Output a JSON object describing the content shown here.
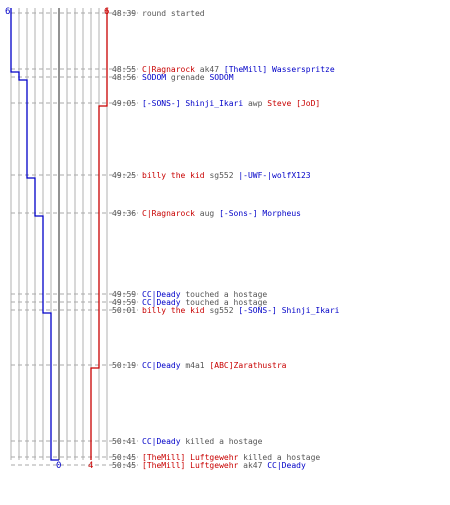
{
  "scores": {
    "blue_start": "6",
    "red_start": "6",
    "blue_end": "0",
    "red_end": "4"
  },
  "colors": {
    "blue": "#0000c8",
    "red": "#c80000",
    "neutral": "#555555",
    "grid": "#b0b0b0",
    "center": "#6e6e6e"
  },
  "events": [
    {
      "time": "48:39",
      "parts": [
        {
          "t": "round started",
          "c": "neutral"
        }
      ]
    },
    {
      "time": "48:55",
      "parts": [
        {
          "t": "C|Ragnarock",
          "c": "red"
        },
        {
          "t": " ak47 ",
          "c": "neutral"
        },
        {
          "t": "[TheMill] Wasserspritze",
          "c": "blue"
        }
      ]
    },
    {
      "time": "48:56",
      "parts": [
        {
          "t": "SODOM",
          "c": "blue"
        },
        {
          "t": " grenade ",
          "c": "neutral"
        },
        {
          "t": "SODOM",
          "c": "blue"
        }
      ]
    },
    {
      "time": "49:05",
      "parts": [
        {
          "t": "[-SONS-] Shinji_Ikari",
          "c": "blue"
        },
        {
          "t": " awp ",
          "c": "neutral"
        },
        {
          "t": "Steve [JoD]",
          "c": "red"
        }
      ]
    },
    {
      "time": "49:25",
      "parts": [
        {
          "t": "billy the kid",
          "c": "red"
        },
        {
          "t": " sg552 ",
          "c": "neutral"
        },
        {
          "t": "|-UWF-|wolfX123",
          "c": "blue"
        }
      ]
    },
    {
      "time": "49:36",
      "parts": [
        {
          "t": "C|Ragnarock",
          "c": "red"
        },
        {
          "t": " aug ",
          "c": "neutral"
        },
        {
          "t": "[-Sons-] Morpheus",
          "c": "blue"
        }
      ]
    },
    {
      "time": "49:59",
      "parts": [
        {
          "t": "CC|Deady",
          "c": "blue"
        },
        {
          "t": " touched a hostage",
          "c": "neutral"
        }
      ]
    },
    {
      "time": "49:59",
      "parts": [
        {
          "t": "CC|Deady",
          "c": "blue"
        },
        {
          "t": " touched a hostage",
          "c": "neutral"
        }
      ]
    },
    {
      "time": "50:01",
      "parts": [
        {
          "t": "billy the kid",
          "c": "red"
        },
        {
          "t": " sg552 ",
          "c": "neutral"
        },
        {
          "t": "[-SONS-] Shinji_Ikari",
          "c": "blue"
        }
      ]
    },
    {
      "time": "50:19",
      "parts": [
        {
          "t": "CC|Deady",
          "c": "blue"
        },
        {
          "t": " m4a1 ",
          "c": "neutral"
        },
        {
          "t": "[ABC]Zarathustra",
          "c": "red"
        }
      ]
    },
    {
      "time": "50:41",
      "parts": [
        {
          "t": "CC|Deady",
          "c": "blue"
        },
        {
          "t": " killed a hostage",
          "c": "neutral"
        }
      ]
    },
    {
      "time": "50:45",
      "parts": [
        {
          "t": "[TheMill] Luftgewehr",
          "c": "red"
        },
        {
          "t": " killed a hostage",
          "c": "neutral"
        }
      ]
    },
    {
      "time": "50:45",
      "parts": [
        {
          "t": "[TheMill] Luftgewehr",
          "c": "red"
        },
        {
          "t": " ak47 ",
          "c": "neutral"
        },
        {
          "t": "CC|Deady",
          "c": "blue"
        }
      ]
    }
  ]
}
